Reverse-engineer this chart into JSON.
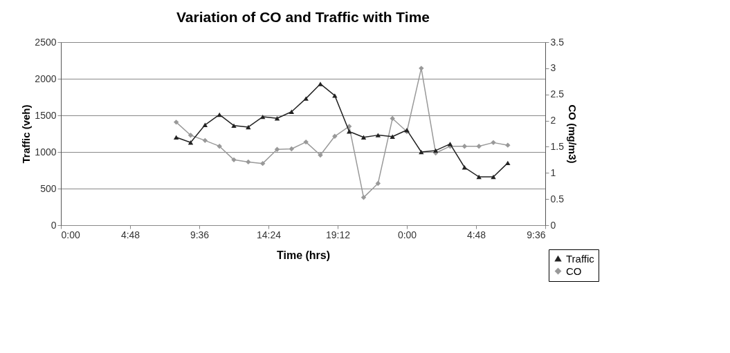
{
  "chart_data": {
    "type": "line",
    "title": "Variation of CO and Traffic with Time",
    "xlabel": "Time (hrs)",
    "ylabel": "Traffic (veh)",
    "y2label": "CO (mg/m3)",
    "x": [
      "2000-01-01T08:00",
      "2000-01-01T09:00",
      "2000-01-01T10:00",
      "2000-01-01T11:00",
      "2000-01-01T12:00",
      "2000-01-01T13:00",
      "2000-01-01T14:00",
      "2000-01-01T15:00",
      "2000-01-01T16:00",
      "2000-01-01T17:00",
      "2000-01-01T18:00",
      "2000-01-01T19:00",
      "2000-01-01T20:00",
      "2000-01-01T21:00",
      "2000-01-01T22:00",
      "2000-01-01T23:00",
      "2000-01-02T00:00",
      "2000-01-02T01:00",
      "2000-01-02T02:00",
      "2000-01-02T03:00",
      "2000-01-02T04:00",
      "2000-01-02T05:00",
      "2000-01-02T06:00",
      "2000-01-02T07:00"
    ],
    "series": [
      {
        "name": "Traffic",
        "color": "#222222",
        "marker": "triangle",
        "values": [
          1200,
          1130,
          1370,
          1510,
          1360,
          1340,
          1480,
          1460,
          1550,
          1730,
          1930,
          1770,
          1280,
          1200,
          1230,
          1210,
          1300,
          1000,
          1020,
          1110,
          790,
          660,
          660,
          850
        ]
      },
      {
        "name": "CO",
        "color": "#999999",
        "marker": "diamond",
        "axis": "y2",
        "values": [
          1.97,
          1.72,
          1.62,
          1.51,
          1.25,
          1.21,
          1.18,
          1.45,
          1.46,
          1.59,
          1.34,
          1.7,
          1.89,
          0.53,
          0.8,
          2.04,
          1.79,
          3.0,
          1.38,
          1.51,
          1.51,
          1.51,
          1.58,
          1.53
        ]
      }
    ],
    "xlim": [
      "2000-01-01T00:00",
      "2000-01-02T09:36"
    ],
    "xticks": [
      {
        "value": "2000-01-01T00:00",
        "label": "0:00"
      },
      {
        "value": "2000-01-01T04:48",
        "label": "4:48"
      },
      {
        "value": "2000-01-01T09:36",
        "label": "9:36"
      },
      {
        "value": "2000-01-01T14:24",
        "label": "14:24"
      },
      {
        "value": "2000-01-01T19:12",
        "label": "19:12"
      },
      {
        "value": "2000-01-02T00:00",
        "label": "0:00"
      },
      {
        "value": "2000-01-02T04:48",
        "label": "4:48"
      },
      {
        "value": "2000-01-02T09:36",
        "label": "9:36"
      }
    ],
    "ylim": [
      0,
      2500
    ],
    "yticks": [
      0,
      500,
      1000,
      1500,
      2000,
      2500
    ],
    "y2lim": [
      0,
      3.5
    ],
    "y2ticks": [
      0,
      0.5,
      1,
      1.5,
      2,
      2.5,
      3,
      3.5
    ],
    "grid": "y",
    "legend": "bottom right",
    "line_style": "solid"
  }
}
